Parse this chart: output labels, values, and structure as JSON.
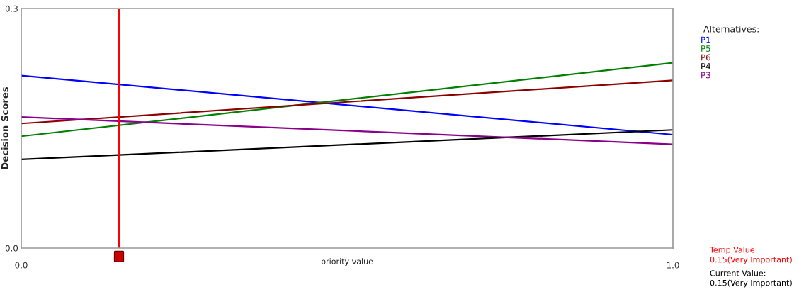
{
  "chart_data": {
    "type": "line",
    "xlabel": "priority value",
    "ylabel": "Decision Scores",
    "legend_title": "Alternatives:",
    "legend": "right",
    "grid": false,
    "x": [
      0,
      1
    ],
    "series": [
      {
        "name": "P1",
        "color": "#0000ff",
        "values": [
          0.216,
          0.142
        ]
      },
      {
        "name": "P5",
        "color": "#008000",
        "values": [
          0.14,
          0.232
        ]
      },
      {
        "name": "P6",
        "color": "#8b0000",
        "values": [
          0.156,
          0.21
        ]
      },
      {
        "name": "P4",
        "color": "#000000",
        "values": [
          0.111,
          0.148
        ]
      },
      {
        "name": "P3",
        "color": "#8b008b",
        "values": [
          0.164,
          0.13
        ]
      }
    ],
    "xlim": [
      0,
      1
    ],
    "xticks": [
      {
        "value": 0,
        "label": "0.0"
      },
      {
        "value": 1,
        "label": "1.0"
      }
    ],
    "ylim": [
      0,
      0.3
    ],
    "yticks": [
      {
        "value": 0,
        "label": "0.0"
      },
      {
        "value": 0.3,
        "label": "0.3"
      }
    ],
    "ref_lines": [
      {
        "axis": "x",
        "value": 0.15,
        "color": "#ff0000"
      }
    ],
    "annotations": [
      "Temp Value:\n0.15(Very Important)",
      "Current Value:\n0.15(Very Important)"
    ]
  }
}
